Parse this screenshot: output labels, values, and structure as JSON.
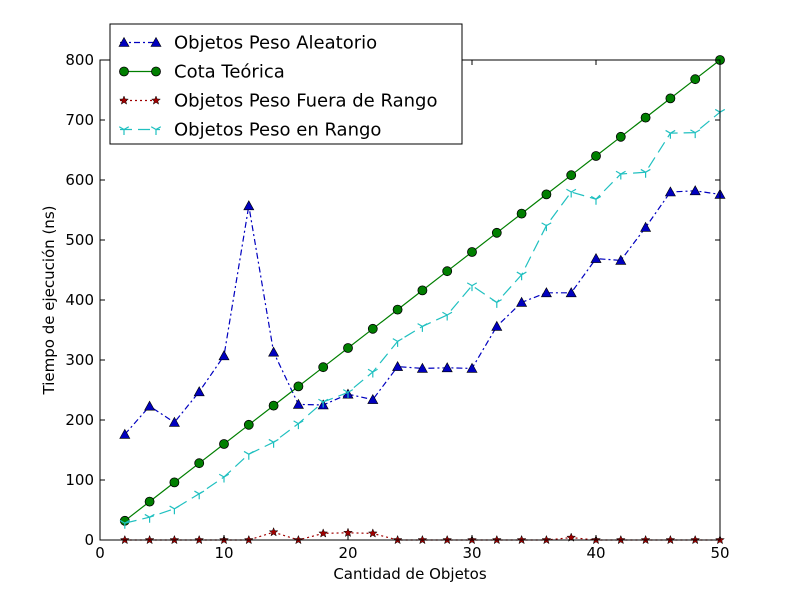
{
  "chart_data": {
    "type": "line",
    "title": "",
    "xlabel": "Cantidad de Objetos",
    "ylabel": "Tiempo de ejecución (ns)",
    "xlim": [
      0,
      50
    ],
    "ylim": [
      0,
      800
    ],
    "xticks": [
      0,
      10,
      20,
      30,
      40,
      50
    ],
    "yticks": [
      0,
      100,
      200,
      300,
      400,
      500,
      600,
      700,
      800
    ],
    "grid": false,
    "legend_position": "top-left",
    "x": [
      2,
      4,
      6,
      8,
      10,
      12,
      14,
      16,
      18,
      20,
      22,
      24,
      26,
      28,
      30,
      32,
      34,
      36,
      38,
      40,
      42,
      44,
      46,
      48,
      50
    ],
    "series": [
      {
        "name": "Objetos Peso Aleatorio",
        "color": "#0000bf",
        "marker": "triangle",
        "linestyle": "dash-dot",
        "values": [
          176,
          223,
          196,
          247,
          307,
          557,
          313,
          226,
          225,
          243,
          234,
          289,
          286,
          287,
          286,
          356,
          396,
          412,
          412,
          469,
          466,
          521,
          580,
          582,
          576
        ]
      },
      {
        "name": "Cota Teórica",
        "color": "#007f00",
        "marker": "circle",
        "linestyle": "solid",
        "values": [
          32,
          64,
          96,
          128,
          160,
          192,
          224,
          256,
          288,
          320,
          352,
          384,
          416,
          448,
          480,
          512,
          544,
          576,
          608,
          640,
          672,
          704,
          736,
          768,
          800
        ]
      },
      {
        "name": "Objetos Peso Fuera de Rango",
        "color": "#a00000",
        "marker": "star",
        "linestyle": "dotted",
        "values": [
          0,
          0,
          0,
          0,
          0,
          0,
          13,
          0,
          11,
          12,
          11,
          0,
          0,
          0,
          0,
          0,
          0,
          0,
          4,
          0,
          0,
          0,
          0,
          0,
          0
        ]
      },
      {
        "name": "Objetos Peso en Rango",
        "color": "#20c0c0",
        "marker": "tri-down",
        "linestyle": "dashed",
        "values": [
          28,
          38,
          52,
          77,
          105,
          143,
          163,
          194,
          230,
          246,
          280,
          331,
          356,
          375,
          424,
          396,
          442,
          524,
          580,
          568,
          610,
          613,
          678,
          679,
          713
        ]
      }
    ]
  }
}
